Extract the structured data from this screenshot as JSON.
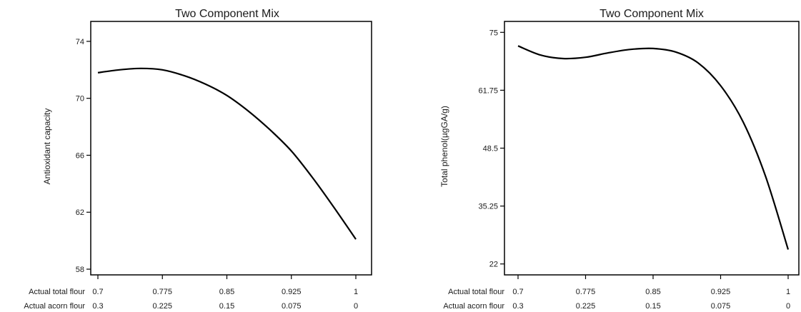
{
  "chart_data": [
    {
      "type": "line",
      "title": "Two Component Mix",
      "ylabel": "Antioxidant capacity",
      "ylim": [
        57.6,
        75.4
      ],
      "yticks": [
        "74",
        "70",
        "66",
        "62",
        "58"
      ],
      "ytick_values": [
        74,
        70,
        66,
        62,
        58
      ],
      "x_row_labels": [
        "Actual total flour",
        "Actual acorn flour"
      ],
      "x_ticks_total": [
        "0.7",
        "0.775",
        "0.85",
        "0.925",
        "1"
      ],
      "x_ticks_acorn": [
        "0.3",
        "0.225",
        "0.15",
        "0.075",
        "0"
      ],
      "xlim": [
        0.7,
        1.0
      ],
      "series": [
        {
          "x": [
            0.7,
            0.725,
            0.75,
            0.775,
            0.8,
            0.825,
            0.85,
            0.875,
            0.9,
            0.925,
            0.95,
            0.975,
            1.0
          ],
          "y": [
            71.8,
            72.0,
            72.1,
            72.0,
            71.6,
            71.0,
            70.2,
            69.1,
            67.8,
            66.3,
            64.4,
            62.3,
            60.1
          ]
        }
      ]
    },
    {
      "type": "line",
      "title": "Two Component Mix",
      "ylabel": "Total phenol(µgGA/g)",
      "ylim": [
        19.5,
        77.5
      ],
      "yticks": [
        "75",
        "61.75",
        "48.5",
        "35.25",
        "22"
      ],
      "ytick_values": [
        75,
        61.75,
        48.5,
        35.25,
        22
      ],
      "x_row_labels": [
        "Actual total flour",
        "Actual acorn flour"
      ],
      "x_ticks_total": [
        "0.7",
        "0.775",
        "0.85",
        "0.925",
        "1"
      ],
      "x_ticks_acorn": [
        "0.3",
        "0.225",
        "0.15",
        "0.075",
        "0"
      ],
      "xlim": [
        0.7,
        1.0
      ],
      "series": [
        {
          "x": [
            0.7,
            0.725,
            0.75,
            0.775,
            0.8,
            0.825,
            0.85,
            0.875,
            0.9,
            0.925,
            0.95,
            0.975,
            1.0
          ],
          "y": [
            71.9,
            69.8,
            69.0,
            69.3,
            70.3,
            71.1,
            71.3,
            70.5,
            68.0,
            62.8,
            54.5,
            42.0,
            25.3
          ]
        }
      ]
    }
  ]
}
